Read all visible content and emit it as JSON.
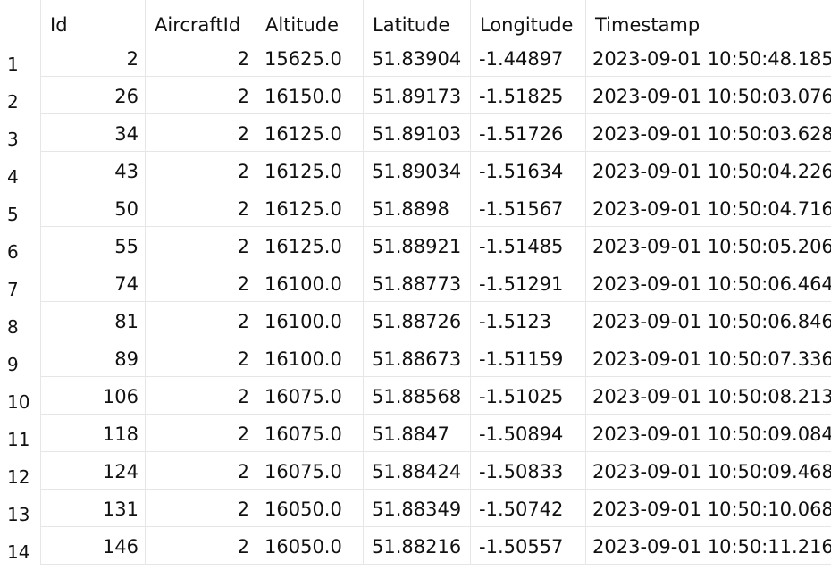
{
  "table": {
    "columns": [
      "Id",
      "AircraftId",
      "Altitude",
      "Latitude",
      "Longitude",
      "Timestamp"
    ],
    "rows": [
      {
        "n": "1",
        "cells": [
          "2",
          "2",
          "15625.0",
          "51.83904",
          "-1.44897",
          "2023-09-01 10:50:48.185"
        ]
      },
      {
        "n": "2",
        "cells": [
          "26",
          "2",
          "16150.0",
          "51.89173",
          "-1.51825",
          "2023-09-01 10:50:03.076"
        ]
      },
      {
        "n": "3",
        "cells": [
          "34",
          "2",
          "16125.0",
          "51.89103",
          "-1.51726",
          "2023-09-01 10:50:03.628"
        ]
      },
      {
        "n": "4",
        "cells": [
          "43",
          "2",
          "16125.0",
          "51.89034",
          "-1.51634",
          "2023-09-01 10:50:04.226"
        ]
      },
      {
        "n": "5",
        "cells": [
          "50",
          "2",
          "16125.0",
          "51.8898",
          "-1.51567",
          "2023-09-01 10:50:04.716"
        ]
      },
      {
        "n": "6",
        "cells": [
          "55",
          "2",
          "16125.0",
          "51.88921",
          "-1.51485",
          "2023-09-01 10:50:05.206"
        ]
      },
      {
        "n": "7",
        "cells": [
          "74",
          "2",
          "16100.0",
          "51.88773",
          "-1.51291",
          "2023-09-01 10:50:06.464"
        ]
      },
      {
        "n": "8",
        "cells": [
          "81",
          "2",
          "16100.0",
          "51.88726",
          "-1.5123",
          "2023-09-01 10:50:06.846"
        ]
      },
      {
        "n": "9",
        "cells": [
          "89",
          "2",
          "16100.0",
          "51.88673",
          "-1.51159",
          "2023-09-01 10:50:07.336"
        ]
      },
      {
        "n": "10",
        "cells": [
          "106",
          "2",
          "16075.0",
          "51.88568",
          "-1.51025",
          "2023-09-01 10:50:08.213"
        ]
      },
      {
        "n": "11",
        "cells": [
          "118",
          "2",
          "16075.0",
          "51.8847",
          "-1.50894",
          "2023-09-01 10:50:09.084"
        ]
      },
      {
        "n": "12",
        "cells": [
          "124",
          "2",
          "16075.0",
          "51.88424",
          "-1.50833",
          "2023-09-01 10:50:09.468"
        ]
      },
      {
        "n": "13",
        "cells": [
          "131",
          "2",
          "16050.0",
          "51.88349",
          "-1.50742",
          "2023-09-01 10:50:10.068"
        ]
      },
      {
        "n": "14",
        "cells": [
          "146",
          "2",
          "16050.0",
          "51.88216",
          "-1.50557",
          "2023-09-01 10:50:11.216"
        ]
      }
    ]
  }
}
